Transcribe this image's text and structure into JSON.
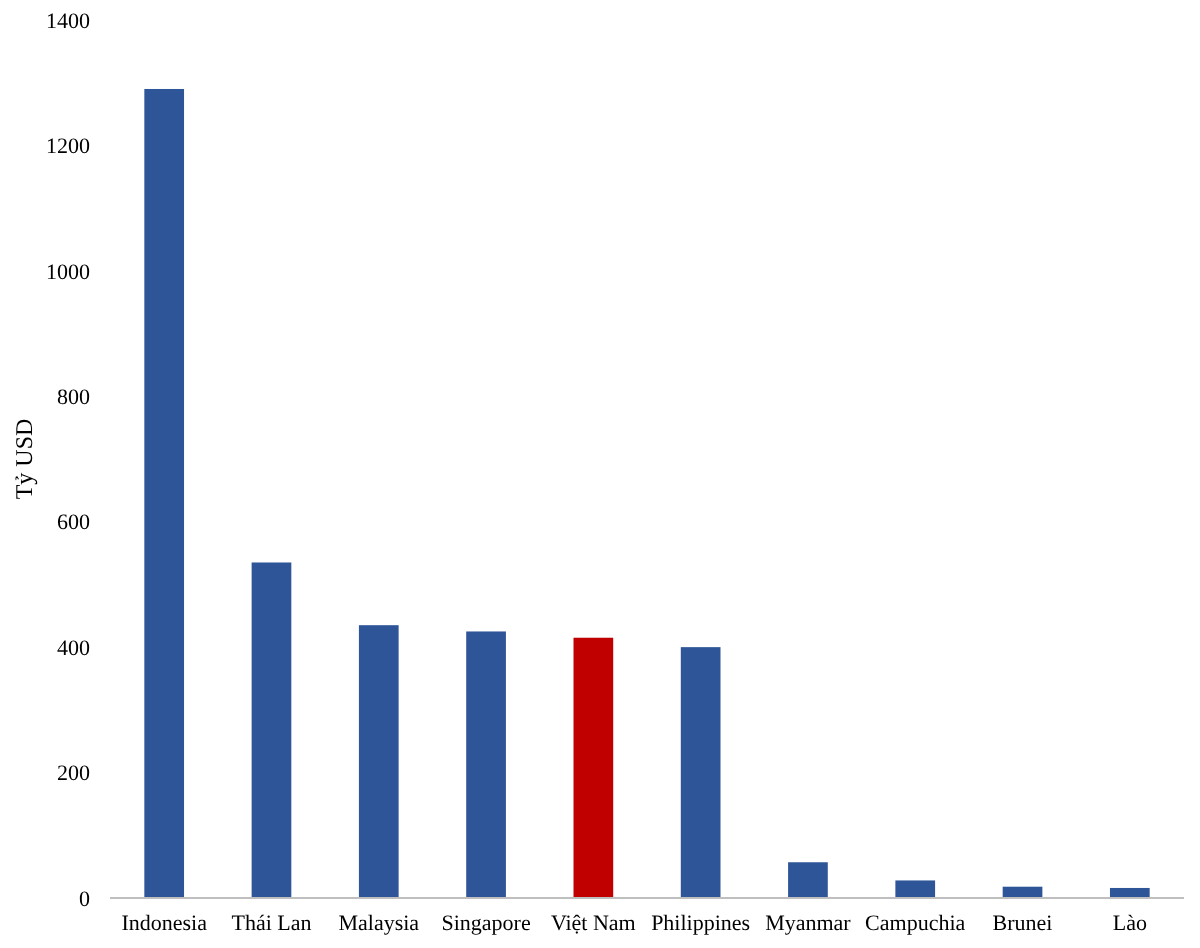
{
  "chart_data": {
    "type": "bar",
    "ylabel": "Tỷ USD",
    "categories": [
      "Indonesia",
      "Thái Lan",
      "Malaysia",
      "Singapore",
      "Việt Nam",
      "Philippines",
      "Myanmar",
      "Campuchia",
      "Brunei",
      "Lào"
    ],
    "values": [
      1290,
      535,
      435,
      425,
      415,
      400,
      57,
      28,
      18,
      16
    ],
    "colors": [
      "#2e5597",
      "#2e5597",
      "#2e5597",
      "#2e5597",
      "#c00000",
      "#2e5597",
      "#2e5597",
      "#2e5597",
      "#2e5597",
      "#2e5597"
    ],
    "ylim": [
      0,
      1400
    ],
    "yticks": [
      0,
      200,
      400,
      600,
      800,
      1000,
      1200,
      1400
    ],
    "grid": false
  }
}
